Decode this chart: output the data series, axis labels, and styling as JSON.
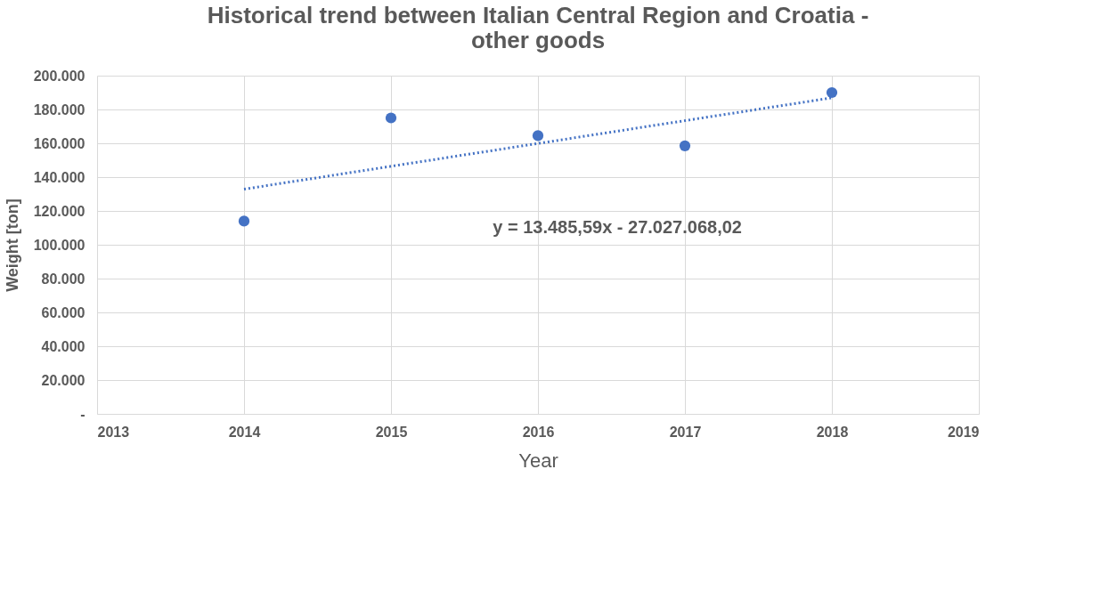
{
  "chart_data": {
    "type": "scatter",
    "title": "Historical trend between Italian Central Region and Croatia - other goods",
    "xlabel": "Year",
    "ylabel": "Weight [ton]",
    "x": [
      2014,
      2015,
      2016,
      2017,
      2018
    ],
    "series": [
      {
        "color": "#4472c4",
        "marker": "circle",
        "values": [
          114000,
          175000,
          164500,
          158500,
          190000
        ]
      },
      {
        "type": "line",
        "color": "#4472c4",
        "line_style": "dotted",
        "x": [
          2014,
          2018
        ],
        "values": [
          132900,
          186900
        ]
      }
    ],
    "xlim": [
      2013,
      2019
    ],
    "xticks": [
      2013,
      2014,
      2015,
      2016,
      2017,
      2018,
      2019
    ],
    "ylim": [
      0,
      200000
    ],
    "yticks": [
      {
        "value": 0,
        "label": "-"
      },
      {
        "value": 20000,
        "label": "20.000"
      },
      {
        "value": 40000,
        "label": "40.000"
      },
      {
        "value": 60000,
        "label": "60.000"
      },
      {
        "value": 80000,
        "label": "80.000"
      },
      {
        "value": 100000,
        "label": "100.000"
      },
      {
        "value": 120000,
        "label": "120.000"
      },
      {
        "value": 140000,
        "label": "140.000"
      },
      {
        "value": 160000,
        "label": "160.000"
      },
      {
        "value": 180000,
        "label": "180.000"
      },
      {
        "value": 200000,
        "label": "200.000"
      }
    ],
    "annotations": [
      "y = 13.485,59x - 27.027.068,02"
    ],
    "grid": true
  }
}
